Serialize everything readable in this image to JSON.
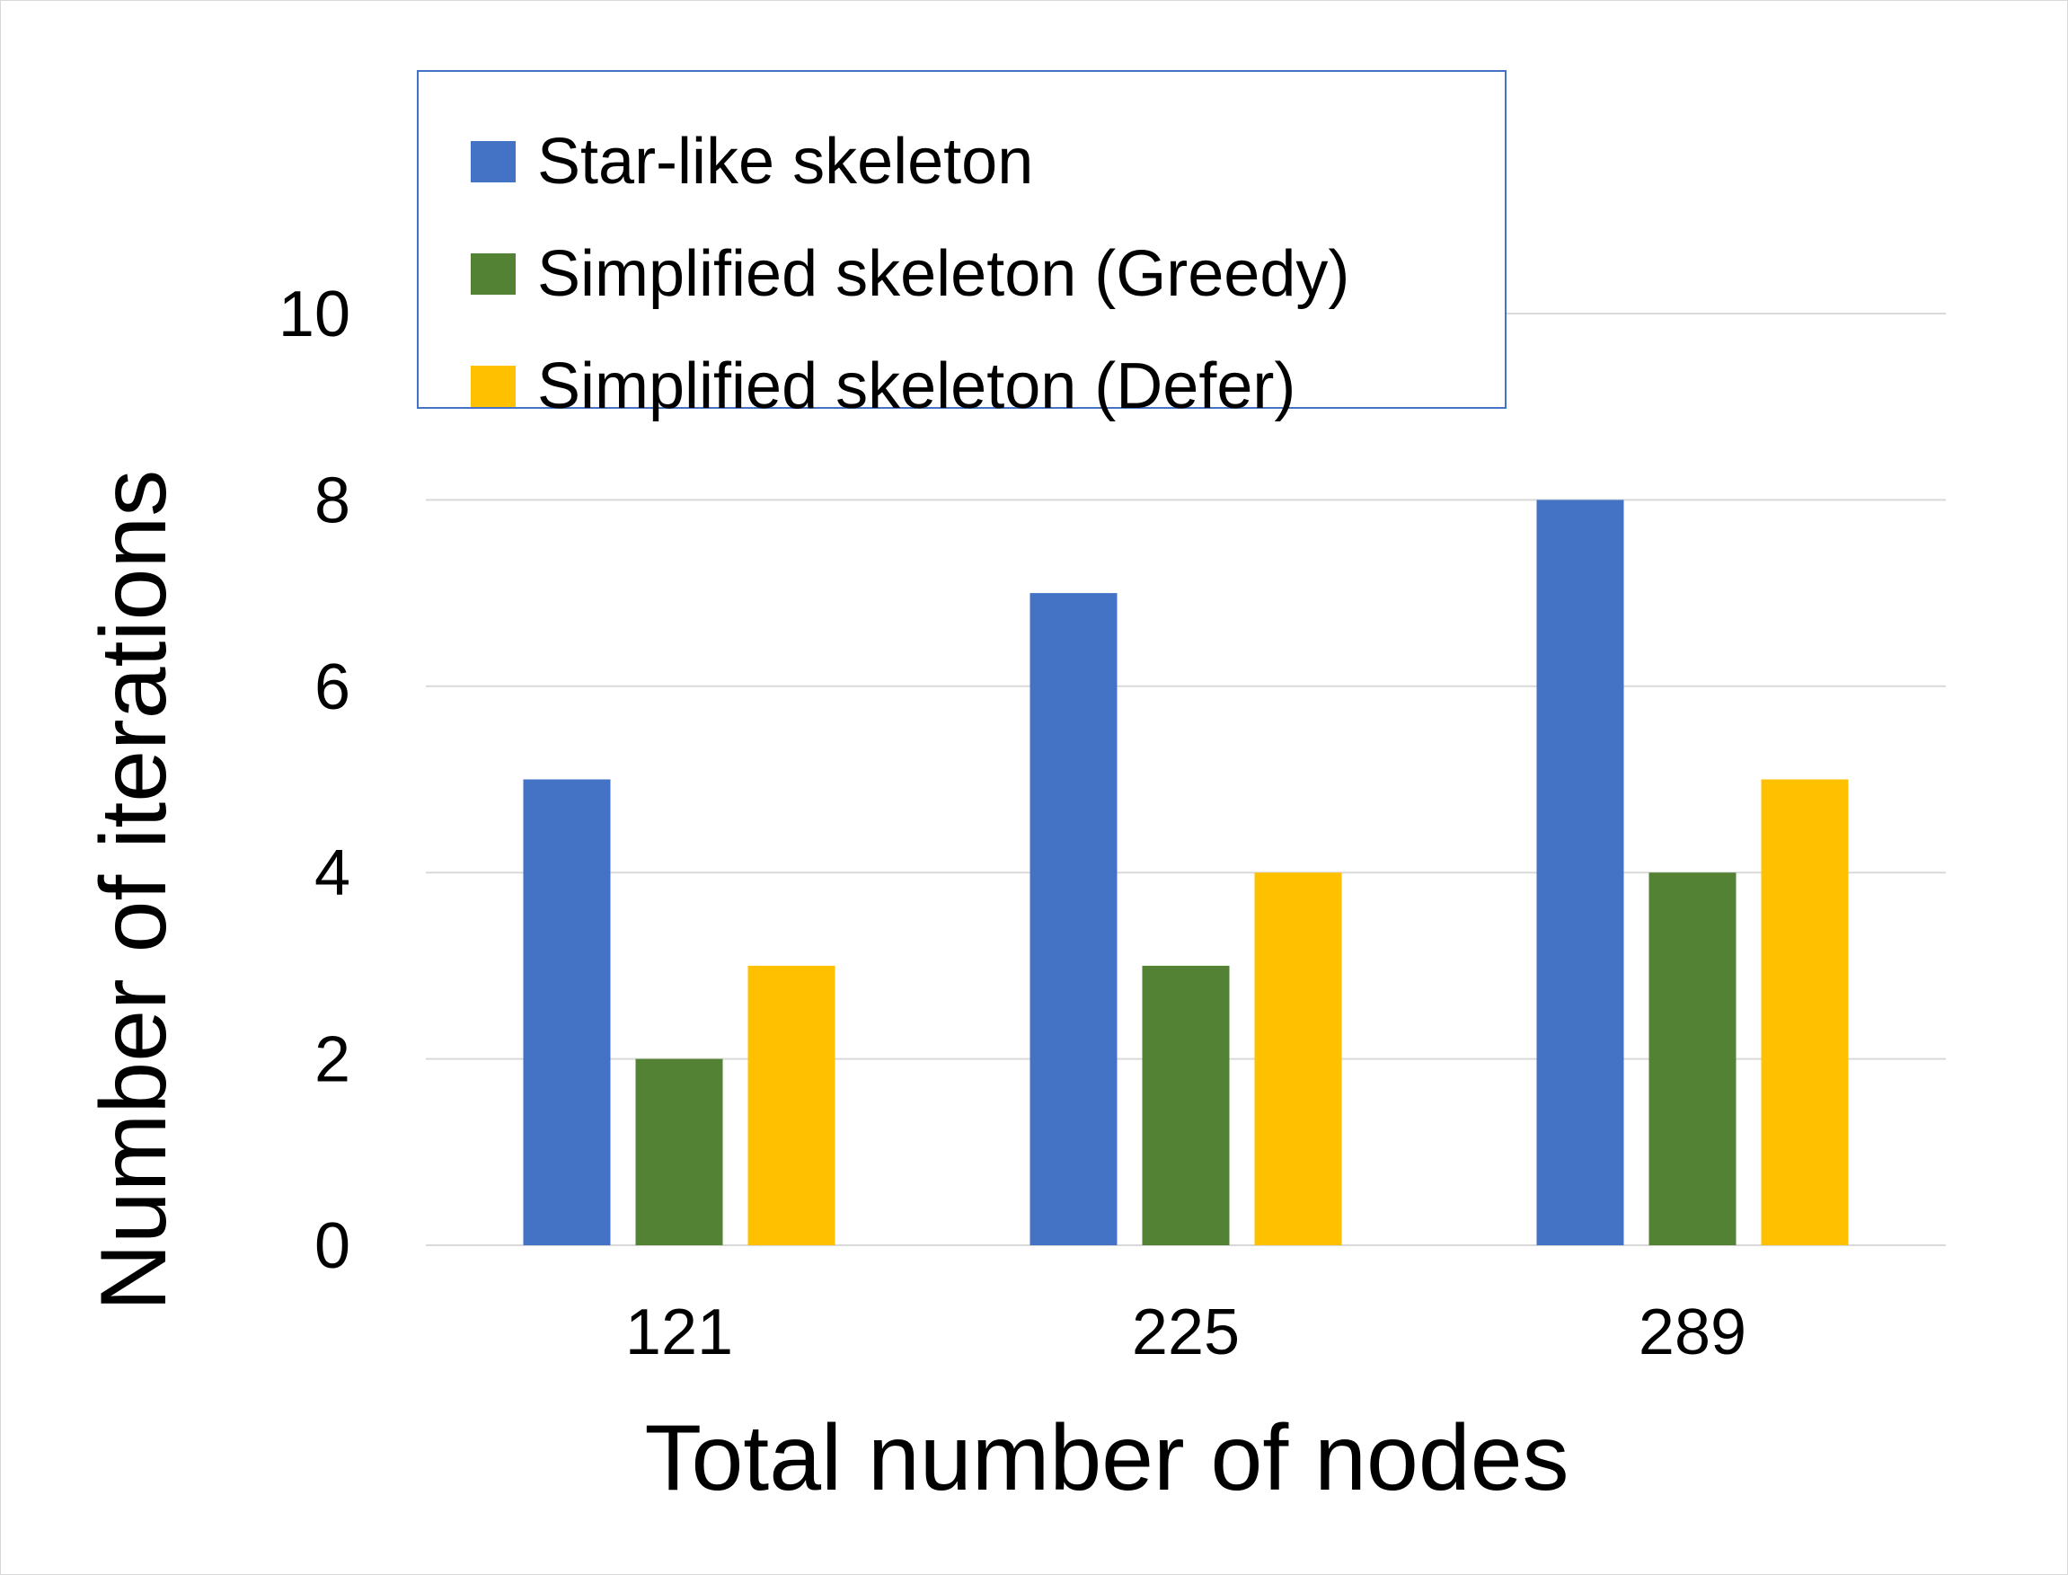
{
  "chart_data": {
    "type": "bar",
    "categories": [
      "121",
      "225",
      "289"
    ],
    "series": [
      {
        "name": "Star-like skeleton",
        "color": "#4472c4",
        "values": [
          5,
          7,
          8
        ]
      },
      {
        "name": "Simplified skeleton (Greedy)",
        "color": "#548235",
        "values": [
          2,
          3,
          4
        ]
      },
      {
        "name": "Simplified skeleton (Defer)",
        "color": "#ffc000",
        "values": [
          3,
          4,
          5
        ]
      }
    ],
    "title": "",
    "xlabel": "Total number of nodes",
    "ylabel": "Number of iterations",
    "ylim": [
      0,
      10
    ],
    "yticks": [
      "0",
      "2",
      "4",
      "6",
      "8",
      "10"
    ],
    "grid": true,
    "legend_position": "top-left"
  }
}
